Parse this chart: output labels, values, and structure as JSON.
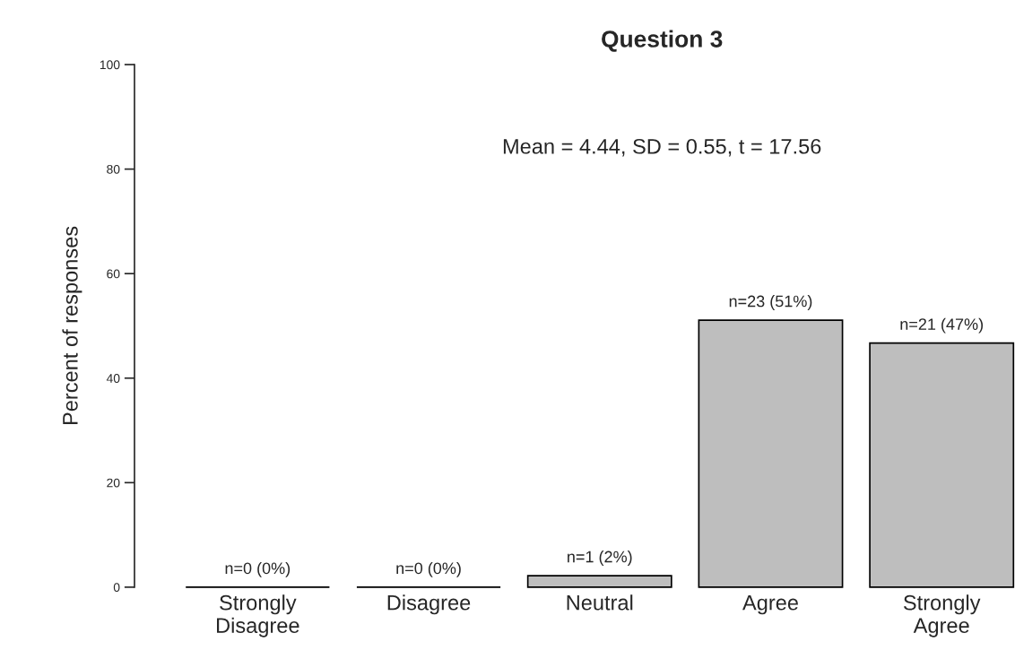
{
  "chart_data": {
    "type": "bar",
    "title": "Question 3",
    "ylabel": "Percent of responses",
    "categories": [
      "Strongly\nDisagree",
      "Disagree",
      "Neutral",
      "Agree",
      "Strongly\nAgree"
    ],
    "values": [
      0,
      0,
      2.2,
      51.1,
      46.7
    ],
    "value_labels": [
      "n=0 (0%)",
      "n=0 (0%)",
      "n=1 (2%)",
      "n=23 (51%)",
      "n=21 (47%)"
    ],
    "color": "#bebebe",
    "ylim": [
      0,
      100
    ],
    "yticks": [
      0,
      20,
      40,
      60,
      80,
      100
    ],
    "annotations": [
      "Mean = 4.44, SD = 0.55, t = 17.56"
    ],
    "grid": false,
    "legend": false
  }
}
